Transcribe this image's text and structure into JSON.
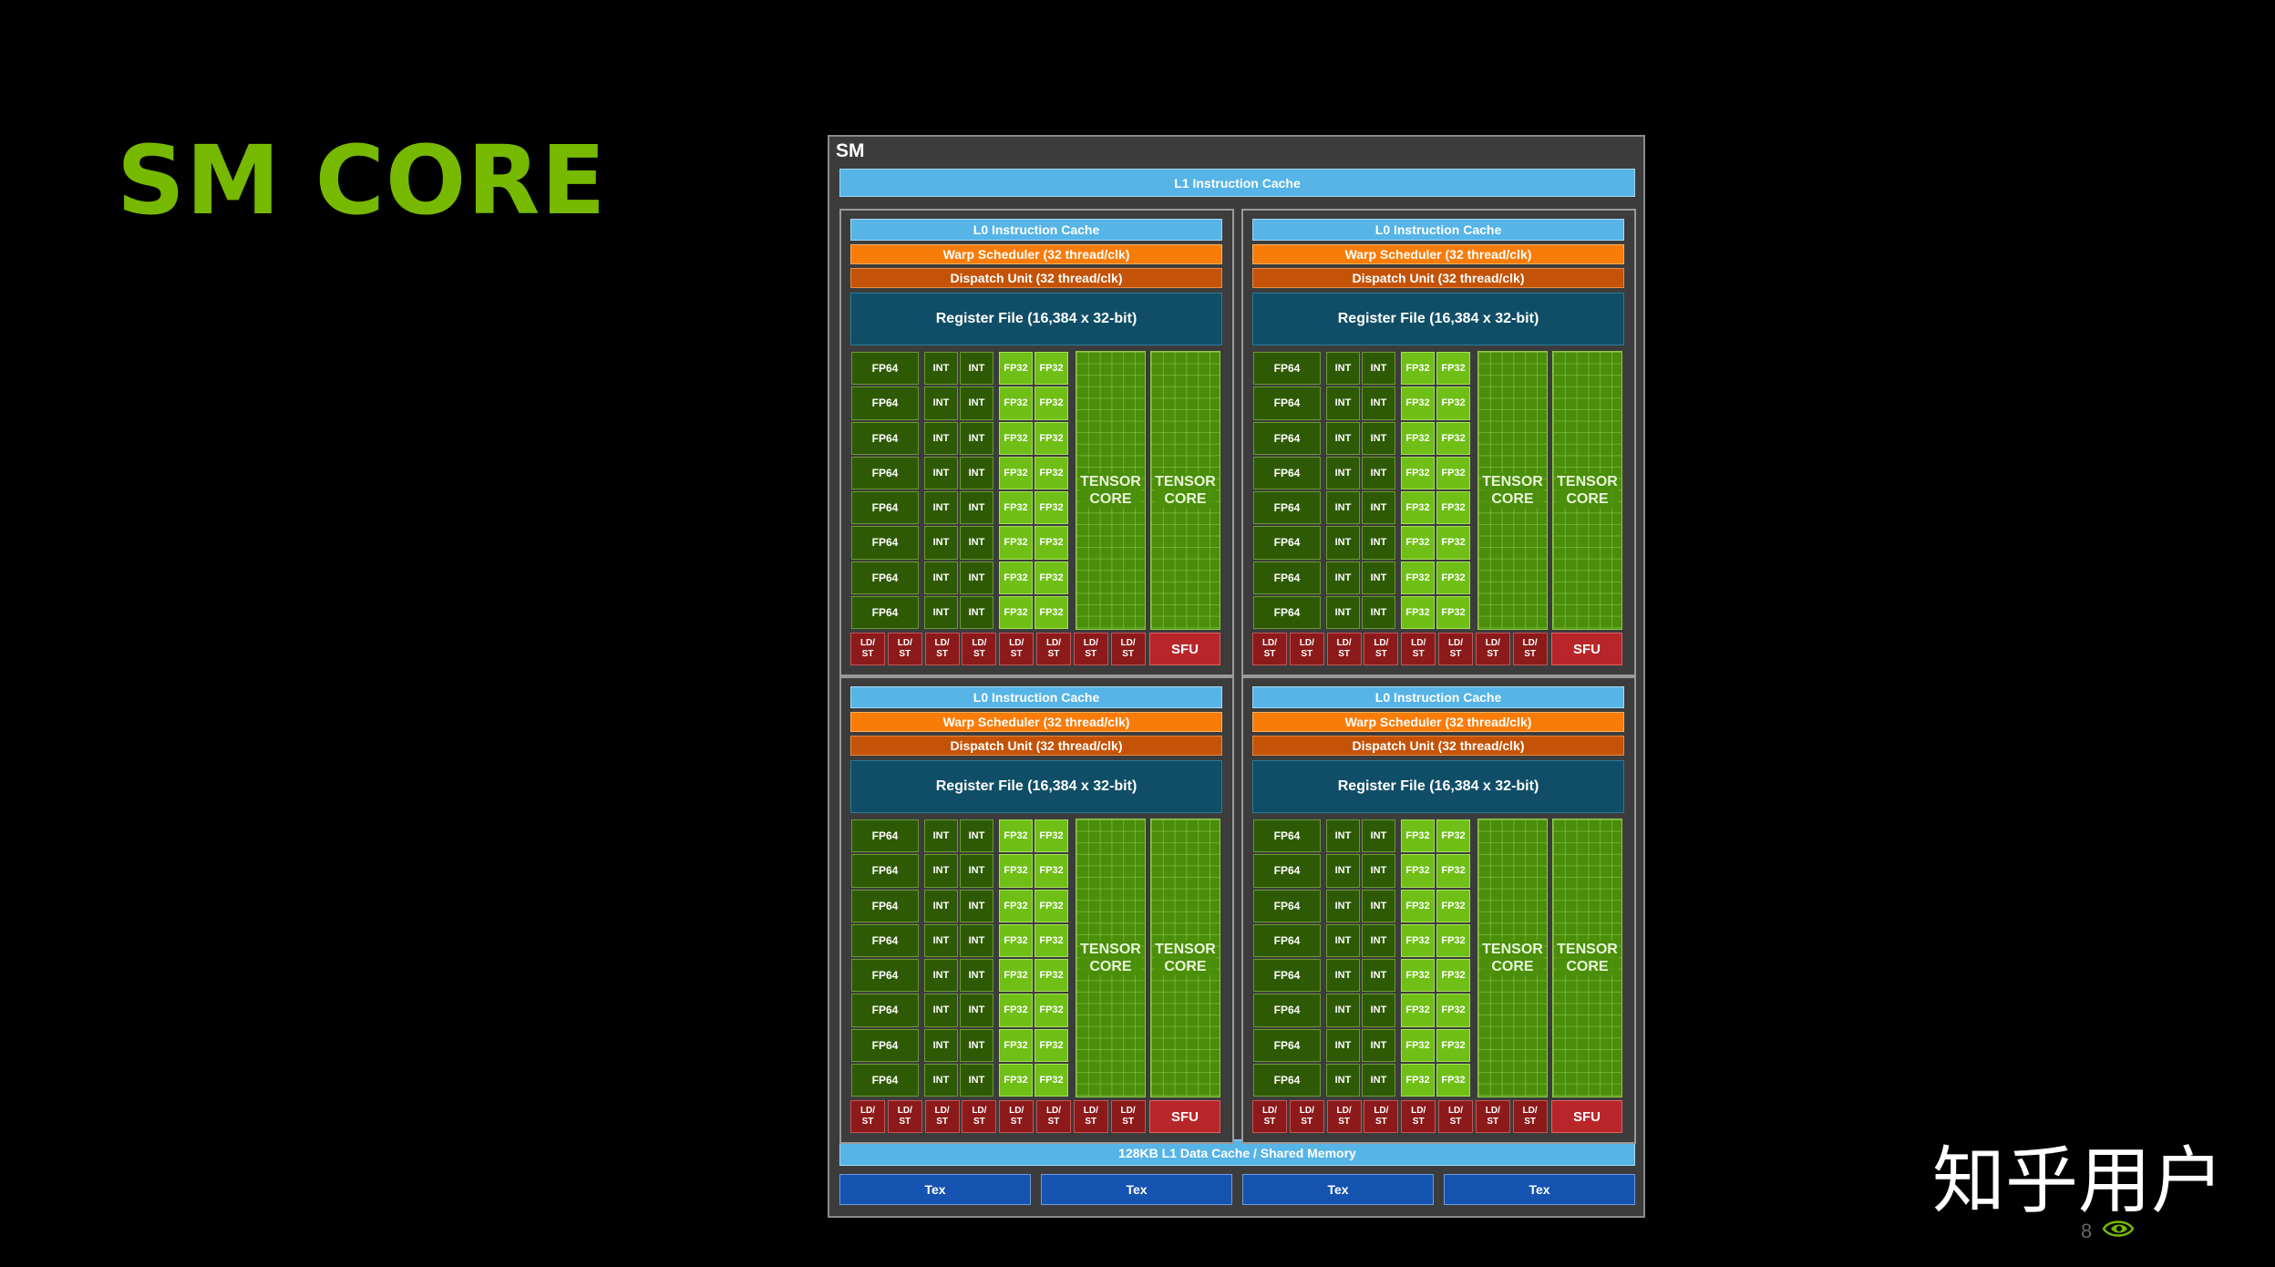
{
  "slide": {
    "title": "SM CORE",
    "watermark": "知乎用户",
    "page_number": "8",
    "logo": "nvidia-eye-logo"
  },
  "sm": {
    "label": "SM",
    "l1_instruction_cache": "L1 Instruction Cache",
    "l1_data_cache": "128KB L1 Data Cache / Shared Memory",
    "tex_units": [
      "Tex",
      "Tex",
      "Tex",
      "Tex"
    ],
    "partition": {
      "l0_instruction_cache": "L0 Instruction Cache",
      "warp_scheduler": "Warp Scheduler (32 thread/clk)",
      "dispatch_unit": "Dispatch Unit (32 thread/clk)",
      "register_file": "Register File (16,384 x 32-bit)",
      "fp64": "FP64",
      "int": "INT",
      "fp32": "FP32",
      "tensor_line1": "TENSOR",
      "tensor_line2": "CORE",
      "ldst_line1": "LD/",
      "ldst_line2": "ST",
      "sfu": "SFU"
    }
  },
  "colors": {
    "title_green": "#76b900",
    "cache_blue": "#56b4e6",
    "warp_orange": "#fa7c08",
    "dispatch_orange": "#c45308",
    "register_teal": "#104e67",
    "fp64_int_green": "#2e5a05",
    "fp32_green": "#6fbf16",
    "tensor_green": "#4a8e0a",
    "ldst_red": "#8c1a1a",
    "sfu_red": "#b8262a",
    "tex_blue": "#1553b0"
  }
}
